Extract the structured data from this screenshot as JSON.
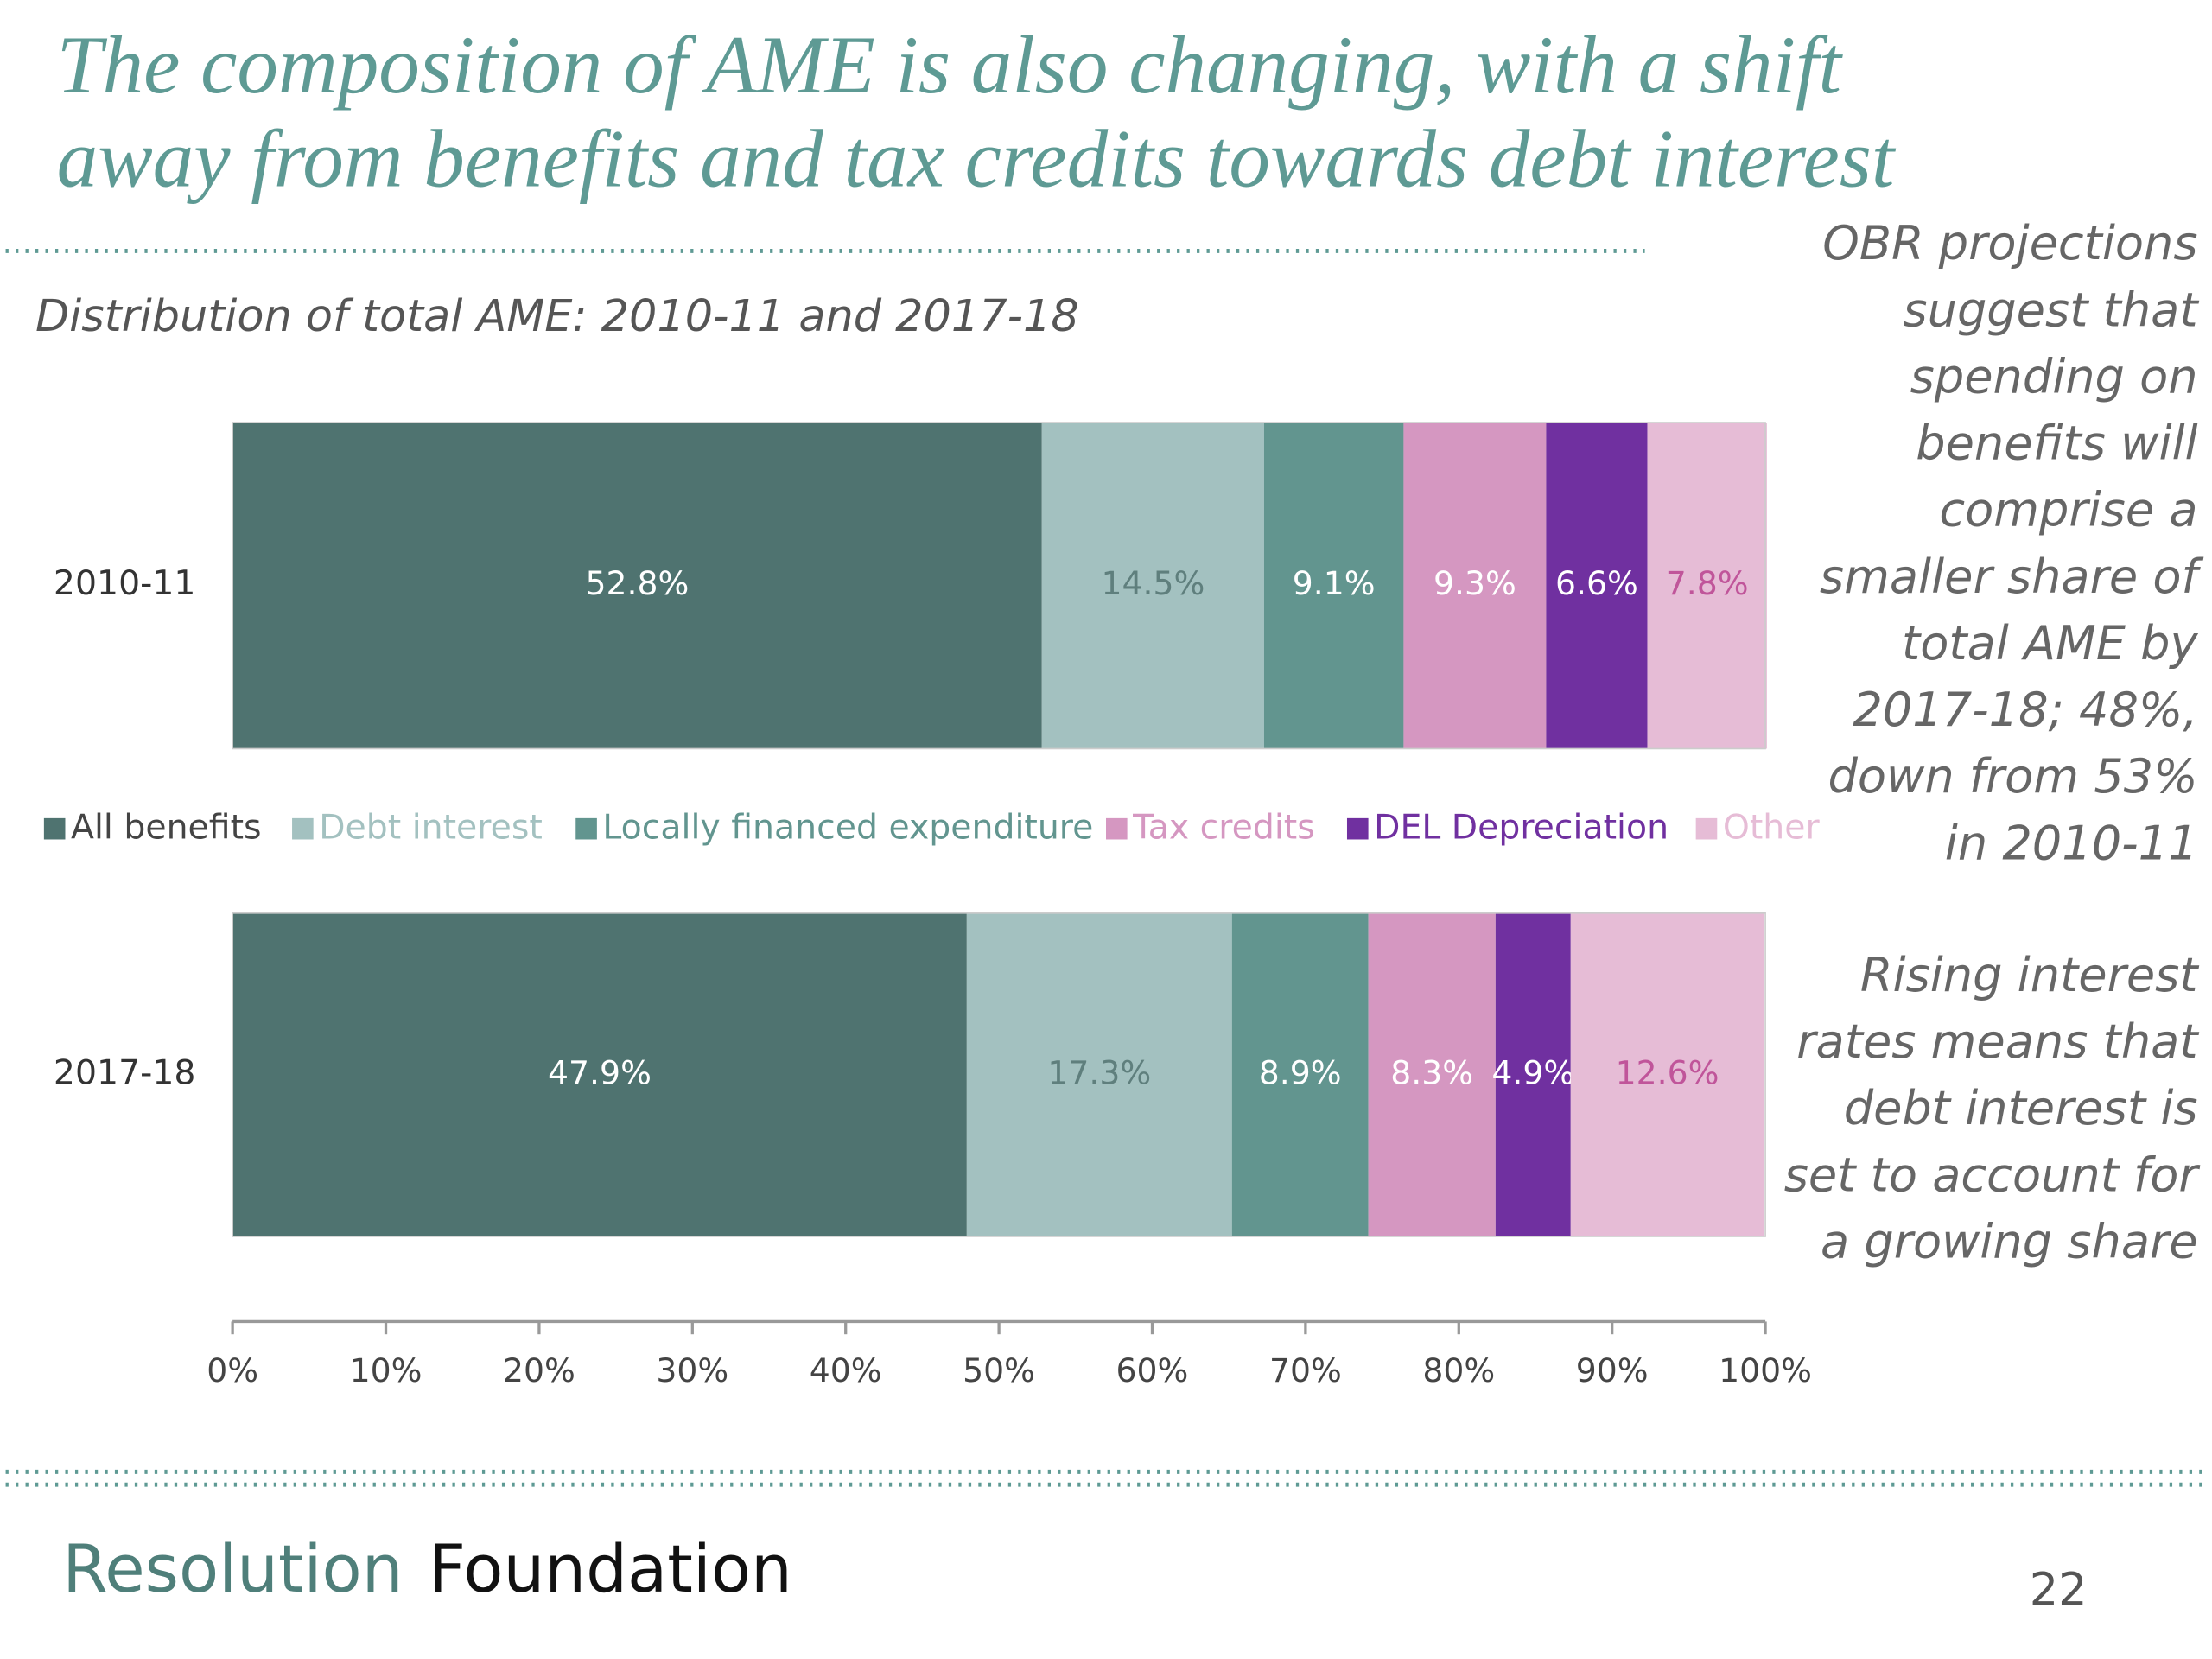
{
  "title": [
    "The composition of AME is also changing, with a shift",
    "away from benefits and tax credits towards debt interest"
  ],
  "chart_data": {
    "type": "stacked-barh",
    "title": "Distribution of total AME: 2010-11 and 2017-18",
    "categories": [
      "2010-11",
      "2017-18"
    ],
    "series": [
      {
        "name": "All benefits",
        "color": "#4f7370",
        "label_color": "#ffffff",
        "values": [
          52.8,
          47.9
        ],
        "value_labels": [
          "52.8%",
          "47.9%"
        ]
      },
      {
        "name": "Debt interest",
        "color": "#a3c1c0",
        "label_color": "#5f7f7d",
        "values": [
          14.5,
          17.3
        ],
        "value_labels": [
          "14.5%",
          "17.3%"
        ]
      },
      {
        "name": "Locally financed expenditure",
        "color": "#62958f",
        "label_color": "#ffffff",
        "values": [
          9.1,
          8.9
        ],
        "value_labels": [
          "9.1%",
          "8.9%"
        ]
      },
      {
        "name": "Tax credits",
        "color": "#d597c1",
        "label_color": "#ffffff",
        "values": [
          9.3,
          8.3
        ],
        "value_labels": [
          "9.3%",
          "8.3%"
        ]
      },
      {
        "name": "DEL Depreciation",
        "color": "#7030a0",
        "label_color": "#ffffff",
        "values": [
          6.6,
          4.9
        ],
        "value_labels": [
          "6.6%",
          "4.9%"
        ]
      },
      {
        "name": "Other",
        "color": "#e6bcd6",
        "label_color": "#c0559a",
        "values": [
          7.8,
          12.6
        ],
        "value_labels": [
          "7.8%",
          "12.6%"
        ]
      }
    ],
    "xlim": [
      0,
      100
    ],
    "xticks": [
      {
        "value": 0,
        "label": "0%"
      },
      {
        "value": 10,
        "label": "10%"
      },
      {
        "value": 20,
        "label": "20%"
      },
      {
        "value": 30,
        "label": "30%"
      },
      {
        "value": 40,
        "label": "40%"
      },
      {
        "value": 50,
        "label": "50%"
      },
      {
        "value": 60,
        "label": "60%"
      },
      {
        "value": 70,
        "label": "70%"
      },
      {
        "value": 80,
        "label": "80%"
      },
      {
        "value": 90,
        "label": "90%"
      },
      {
        "value": 100,
        "label": "100%"
      }
    ],
    "grid": false,
    "legend": "middle"
  },
  "notes": [
    [
      "OBR projections",
      "suggest that",
      "spending on",
      "benefits will",
      "comprise a",
      "smaller share of",
      "total AME by",
      "2017-18; 48%,",
      "down from 53%",
      "in 2010-11"
    ],
    [
      "Rising interest",
      "rates means that",
      "debt interest is",
      "set to account for",
      "a growing share"
    ]
  ],
  "footer": {
    "brand": [
      "Resolution",
      "Foundation"
    ],
    "page": "22"
  }
}
